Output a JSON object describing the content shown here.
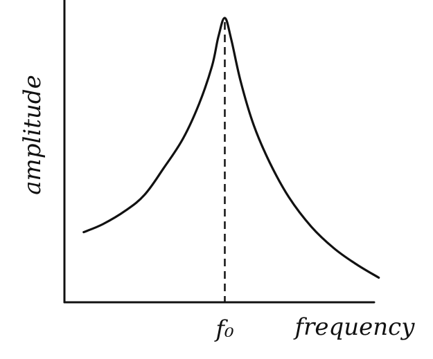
{
  "chart_data": {
    "type": "line",
    "title": "",
    "xlabel": "frequency",
    "ylabel": "amplitude",
    "x_ticks": [
      {
        "value": 0.5,
        "label": "f₀"
      }
    ],
    "xlim": [
      0,
      1
    ],
    "ylim": [
      0,
      1
    ],
    "grid": false,
    "reference_lines": [
      {
        "orientation": "vertical",
        "x": 0.5,
        "style": "dashed"
      }
    ],
    "series": [
      {
        "x": [
          0.06,
          0.12,
          0.19,
          0.25,
          0.31,
          0.37,
          0.42,
          0.46,
          0.48,
          0.5,
          0.52,
          0.55,
          0.59,
          0.64,
          0.7,
          0.77,
          0.84,
          0.91,
          0.98
        ],
        "values": [
          0.2,
          0.23,
          0.28,
          0.34,
          0.44,
          0.55,
          0.68,
          0.82,
          0.93,
          1.0,
          0.92,
          0.76,
          0.6,
          0.46,
          0.33,
          0.22,
          0.14,
          0.08,
          0.03
        ]
      }
    ]
  }
}
